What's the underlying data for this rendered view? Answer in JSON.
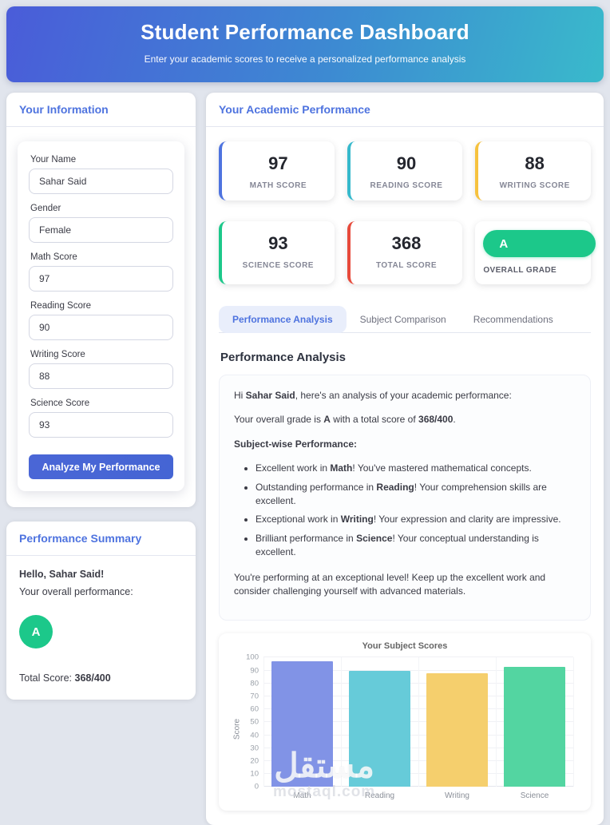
{
  "header": {
    "title": "Student Performance Dashboard",
    "subtitle": "Enter your academic scores to receive a personalized performance analysis"
  },
  "info_panel": {
    "title": "Your Information",
    "fields": [
      {
        "label": "Your Name",
        "value": "Sahar Said"
      },
      {
        "label": "Gender",
        "value": "Female"
      },
      {
        "label": "Math Score",
        "value": "97"
      },
      {
        "label": "Reading Score",
        "value": "90"
      },
      {
        "label": "Writing Score",
        "value": "88"
      },
      {
        "label": "Science Score",
        "value": "93"
      }
    ],
    "submit_label": "Analyze My Performance"
  },
  "summary_panel": {
    "title": "Performance Summary",
    "greeting": "Hello, Sahar Said!",
    "overall_label": "Your overall performance:",
    "grade": "A",
    "grade_color": "#1cc88a",
    "total_label": "Total Score:",
    "total_value": "368/400"
  },
  "academic_panel": {
    "title": "Your Academic Performance",
    "score_cards": [
      {
        "value": "97",
        "label": "MATH SCORE",
        "accent": "#4e73df"
      },
      {
        "value": "90",
        "label": "READING SCORE",
        "accent": "#36b9cc"
      },
      {
        "value": "88",
        "label": "WRITING SCORE",
        "accent": "#f6c23e"
      },
      {
        "value": "93",
        "label": "SCIENCE SCORE",
        "accent": "#1cc88a"
      },
      {
        "value": "368",
        "label": "TOTAL SCORE",
        "accent": "#e74a3b"
      }
    ],
    "grade_card": {
      "grade": "A",
      "label": "OVERALL GRADE",
      "color": "#1cc88a"
    },
    "tabs": [
      {
        "label": "Performance Analysis",
        "active": true
      },
      {
        "label": "Subject Comparison",
        "active": false
      },
      {
        "label": "Recommendations",
        "active": false
      }
    ],
    "section_heading": "Performance Analysis",
    "analysis": {
      "intro_html": "Hi <strong>Sahar Said</strong>, here's an analysis of your academic performance:",
      "grade_html": "Your overall grade is <strong>A</strong> with a total score of <strong>368/400</strong>.",
      "subject_heading_html": "<strong>Subject-wise Performance:</strong>",
      "bullets_html": [
        "Excellent work in <strong>Math</strong>! You've mastered mathematical concepts.",
        "Outstanding performance in <strong>Reading</strong>! Your comprehension skills are excellent.",
        "Exceptional work in <strong>Writing</strong>! Your expression and clarity are impressive.",
        "Brilliant performance in <strong>Science</strong>! Your conceptual understanding is excellent."
      ],
      "closing": "You're performing at an exceptional level! Keep up the excellent work and consider challenging yourself with advanced materials."
    }
  },
  "chart_data": {
    "type": "bar",
    "title": "Your Subject Scores",
    "categories": [
      "Math",
      "Reading",
      "Writing",
      "Science"
    ],
    "values": [
      97,
      90,
      88,
      93
    ],
    "xlabel": "",
    "ylabel": "Score",
    "ylim": [
      0,
      100
    ],
    "ytick_step": 10,
    "grid": true,
    "legend": false,
    "bar_colors": [
      "#8193e6",
      "#66cbd9",
      "#f5cf6d",
      "#53d5a1"
    ]
  },
  "watermark": {
    "arabic": "مستقل",
    "domain": "mostaql.com"
  },
  "accent_colors": {
    "primary": "#4e73df",
    "success": "#1cc88a",
    "info": "#36b9cc",
    "warning": "#f6c23e",
    "danger": "#e74a3b"
  }
}
